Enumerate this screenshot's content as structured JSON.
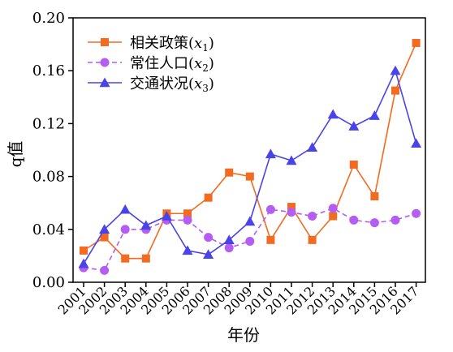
{
  "chart_data": {
    "type": "line",
    "title": "",
    "xlabel": "年份",
    "ylabel": "q值",
    "ylim": [
      0.0,
      0.2
    ],
    "yticks": [
      0.0,
      0.04,
      0.08,
      0.12,
      0.16,
      0.2
    ],
    "ytick_labels": [
      "0.00",
      "0.04",
      "0.08",
      "0.12",
      "0.16",
      "0.20"
    ],
    "categories": [
      "2001",
      "2002",
      "2003",
      "2004",
      "2005",
      "2006",
      "2007",
      "2008",
      "2009",
      "2010",
      "2011",
      "2012",
      "2013",
      "2014",
      "2015",
      "2016",
      "2017"
    ],
    "legend_position": "top-left",
    "grid": false,
    "series": [
      {
        "name": "相关政策(x1)",
        "legend_label": "相关政策(",
        "legend_var": "x",
        "legend_sub": "1",
        "color": "#F26B21",
        "marker": "square",
        "dashed": false,
        "values": [
          0.024,
          0.034,
          0.018,
          0.018,
          0.052,
          0.052,
          0.064,
          0.083,
          0.08,
          0.032,
          0.057,
          0.032,
          0.05,
          0.089,
          0.065,
          0.145,
          0.181
        ]
      },
      {
        "name": "常住人口(x2)",
        "legend_label": "常住人口(",
        "legend_var": "x",
        "legend_sub": "2",
        "color": "#B45DF2",
        "marker": "circle",
        "dashed": true,
        "values": [
          0.011,
          0.009,
          0.04,
          0.04,
          0.047,
          0.047,
          0.034,
          0.026,
          0.031,
          0.055,
          0.053,
          0.05,
          0.056,
          0.047,
          0.045,
          0.047,
          0.052
        ]
      },
      {
        "name": "交通状况(x3)",
        "legend_label": "交通状况(",
        "legend_var": "x",
        "legend_sub": "3",
        "color": "#4A44E8",
        "marker": "triangle",
        "dashed": false,
        "values": [
          0.014,
          0.04,
          0.055,
          0.043,
          0.05,
          0.024,
          0.021,
          0.032,
          0.046,
          0.097,
          0.092,
          0.102,
          0.127,
          0.118,
          0.126,
          0.16,
          0.105
        ]
      }
    ]
  }
}
